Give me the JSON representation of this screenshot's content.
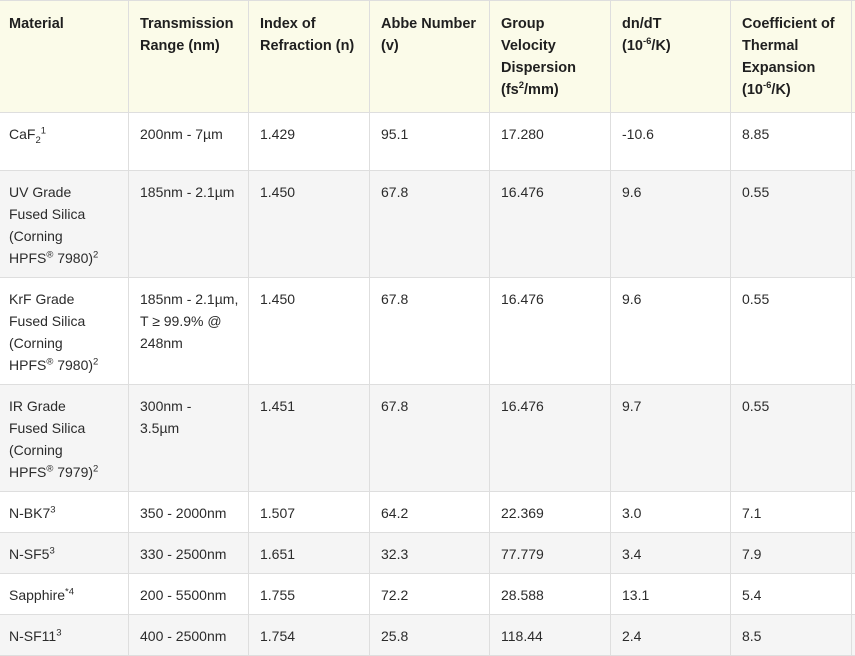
{
  "table": {
    "headers": [
      {
        "pre": "Material",
        "sup": "",
        "post": ""
      },
      {
        "pre": "Transmission\nRange (nm)",
        "sup": "",
        "post": ""
      },
      {
        "pre": "Index of\nRefraction (n)",
        "sup": "",
        "post": ""
      },
      {
        "pre": "Abbe Number\n(v)",
        "sup": "",
        "post": ""
      },
      {
        "pre": "Group Velocity\nDispersion\n(fs",
        "sup": "2",
        "post": "/mm)"
      },
      {
        "pre": "dn/dT\n(10",
        "sup": "-6",
        "post": "/K)"
      },
      {
        "pre": "Coefficient of\nThermal\nExpansion (10",
        "sup": "-6",
        "post": "/K)"
      }
    ],
    "rows": [
      {
        "material": {
          "base": "CaF",
          "sub": "2",
          "note_sup": "1",
          "reg": "",
          "suffix": ""
        },
        "transmission": "200nm - 7µm",
        "index": "1.429",
        "abbe": "95.1",
        "gvd": "17.280",
        "dndt": "-10.6",
        "cte": "8.85"
      },
      {
        "material": {
          "base": "UV Grade\nFused Silica\n(Corning\nHPFS",
          "sub": "",
          "note_sup": "2",
          "reg": "®",
          "suffix": " 7980)"
        },
        "transmission": "185nm - 2.1µm",
        "index": "1.450",
        "abbe": "67.8",
        "gvd": "16.476",
        "dndt": "9.6",
        "cte": "0.55"
      },
      {
        "material": {
          "base": "KrF Grade\nFused Silica\n(Corning\nHPFS",
          "sub": "",
          "note_sup": "2",
          "reg": "®",
          "suffix": " 7980)"
        },
        "transmission": "185nm - 2.1µm,\nT ≥ 99.9% @\n248nm",
        "index": "1.450",
        "abbe": "67.8",
        "gvd": "16.476",
        "dndt": "9.6",
        "cte": "0.55"
      },
      {
        "material": {
          "base": "IR Grade\nFused Silica\n(Corning\nHPFS",
          "sub": "",
          "note_sup": "2",
          "reg": "®",
          "suffix": " 7979)"
        },
        "transmission": "300nm -\n3.5µm",
        "index": "1.451",
        "abbe": "67.8",
        "gvd": "16.476",
        "dndt": "9.7",
        "cte": "0.55"
      },
      {
        "material": {
          "base": "N-BK7",
          "sub": "",
          "note_sup": "3",
          "reg": "",
          "suffix": ""
        },
        "transmission": "350 - 2000nm",
        "index": "1.507",
        "abbe": "64.2",
        "gvd": "22.369",
        "dndt": "3.0",
        "cte": "7.1"
      },
      {
        "material": {
          "base": "N-SF5",
          "sub": "",
          "note_sup": "3",
          "reg": "",
          "suffix": ""
        },
        "transmission": "330 - 2500nm",
        "index": "1.651",
        "abbe": "32.3",
        "gvd": "77.779",
        "dndt": "3.4",
        "cte": "7.9"
      },
      {
        "material": {
          "base": "Sapphire",
          "sub": "",
          "note_sup": "*4",
          "reg": "",
          "suffix": ""
        },
        "transmission": "200 - 5500nm",
        "index": "1.755",
        "abbe": "72.2",
        "gvd": "28.588",
        "dndt": "13.1",
        "cte": "5.4"
      },
      {
        "material": {
          "base": "N-SF11",
          "sub": "",
          "note_sup": "3",
          "reg": "",
          "suffix": ""
        },
        "transmission": "400 - 2500nm",
        "index": "1.754",
        "abbe": "25.8",
        "gvd": "118.44",
        "dndt": "2.4",
        "cte": "8.5"
      }
    ]
  }
}
